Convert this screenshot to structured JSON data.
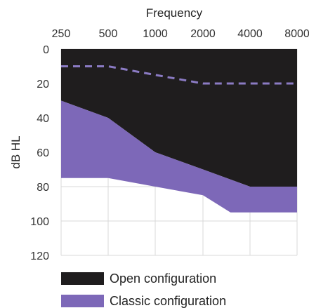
{
  "chart_data": {
    "type": "area",
    "xlabel": "Frequency",
    "ylabel": "dB HL",
    "x": [
      "250",
      "500",
      "1000",
      "2000",
      "4000",
      "8000"
    ],
    "y_ticks": [
      "0",
      "20",
      "40",
      "60",
      "80",
      "100",
      "120"
    ],
    "ylim": [
      0,
      120
    ],
    "y_inverted": true,
    "grid": true,
    "legend_position": "bottom-left",
    "series": [
      {
        "name": "Open configuration",
        "color": "#1f1d1e",
        "fill_between": {
          "upper": [
            {
              "x": "250",
              "y": 0
            },
            {
              "x": "8000",
              "y": 0
            }
          ],
          "lower": [
            {
              "x": "250",
              "y": 30
            },
            {
              "x": "500",
              "y": 40
            },
            {
              "x": "1000",
              "y": 60
            },
            {
              "x": "2000",
              "y": 70
            },
            {
              "x": "4000",
              "y": 80
            },
            {
              "x": "8000",
              "y": 80
            }
          ]
        }
      },
      {
        "name": "Classic configuration",
        "color": "#7d68b8",
        "fill_between": {
          "upper": [
            {
              "x": "250",
              "y": 30
            },
            {
              "x": "500",
              "y": 40
            },
            {
              "x": "1000",
              "y": 60
            },
            {
              "x": "2000",
              "y": 70
            },
            {
              "x": "4000",
              "y": 80
            },
            {
              "x": "8000",
              "y": 80
            }
          ],
          "lower": [
            {
              "x": "250",
              "y": 75
            },
            {
              "x": "500",
              "y": 75
            },
            {
              "x": "1000",
              "y": 80
            },
            {
              "x": "2000",
              "y": 85
            },
            {
              "x": "3000",
              "y": 95
            },
            {
              "x": "4000",
              "y": 95
            },
            {
              "x": "8000",
              "y": 95
            }
          ]
        }
      }
    ],
    "reference_line": {
      "style": "dashed",
      "color": "#8b7bc4",
      "points": [
        {
          "x": "250",
          "y": 10
        },
        {
          "x": "500",
          "y": 10
        },
        {
          "x": "1000",
          "y": 15
        },
        {
          "x": "2000",
          "y": 20
        },
        {
          "x": "4000",
          "y": 20
        },
        {
          "x": "8000",
          "y": 20
        }
      ]
    }
  },
  "style": {
    "grid_color": "#d9d9d9",
    "axis_text_color": "#333333",
    "background": "#ffffff"
  }
}
